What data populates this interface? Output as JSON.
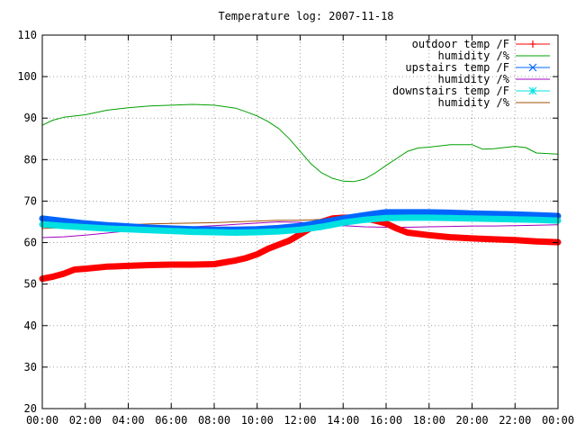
{
  "chart_data": {
    "type": "line",
    "title": "Temperature log: 2007-11-18",
    "xlabel": "",
    "ylabel": "",
    "xlim": [
      "00:00",
      "24:00"
    ],
    "ylim": [
      20,
      110
    ],
    "x_ticks": [
      "00:00",
      "02:00",
      "04:00",
      "06:00",
      "08:00",
      "10:00",
      "12:00",
      "14:00",
      "16:00",
      "18:00",
      "20:00",
      "22:00",
      "00:00"
    ],
    "y_ticks": [
      20,
      30,
      40,
      50,
      60,
      70,
      80,
      90,
      100,
      110
    ],
    "grid": true,
    "legend_position": "top-right",
    "series": [
      {
        "name": "outdoor temp /F",
        "color": "#ff0000",
        "marker": "plus",
        "thick": true,
        "x": [
          "00:00",
          "00:30",
          "01:00",
          "01:30",
          "02:00",
          "03:00",
          "04:00",
          "05:00",
          "06:00",
          "07:00",
          "08:00",
          "09:00",
          "09:30",
          "10:00",
          "10:30",
          "11:00",
          "11:30",
          "12:00",
          "12:30",
          "13:00",
          "13:30",
          "14:00",
          "14:30",
          "15:00",
          "15:30",
          "16:00",
          "16:30",
          "17:00",
          "18:00",
          "19:00",
          "20:00",
          "21:00",
          "22:00",
          "23:00",
          "24:00"
        ],
        "values": [
          51.3,
          51.8,
          52.5,
          53.5,
          53.7,
          54.2,
          54.4,
          54.6,
          54.7,
          54.7,
          54.8,
          55.7,
          56.3,
          57.2,
          58.5,
          59.5,
          60.5,
          62.0,
          63.5,
          65.0,
          65.8,
          66.0,
          66.0,
          65.9,
          65.3,
          64.6,
          63.4,
          62.4,
          61.8,
          61.3,
          61.0,
          60.8,
          60.6,
          60.3,
          60.1
        ]
      },
      {
        "name": "humidity /%",
        "color": "#00a000",
        "marker": "none",
        "thick": false,
        "x": [
          "00:00",
          "00:30",
          "01:00",
          "02:00",
          "03:00",
          "04:00",
          "05:00",
          "06:00",
          "07:00",
          "08:00",
          "09:00",
          "09:30",
          "10:00",
          "10:30",
          "11:00",
          "11:30",
          "12:00",
          "12:30",
          "13:00",
          "13:30",
          "14:00",
          "14:30",
          "15:00",
          "15:30",
          "16:00",
          "16:30",
          "17:00",
          "17:30",
          "18:00",
          "19:00",
          "20:00",
          "20:30",
          "21:00",
          "22:00",
          "22:30",
          "23:00",
          "24:00"
        ],
        "values": [
          88.3,
          89.5,
          90.2,
          90.8,
          91.9,
          92.5,
          92.9,
          93.1,
          93.3,
          93.1,
          92.4,
          91.5,
          90.5,
          89.2,
          87.5,
          85.0,
          82.0,
          79.0,
          76.8,
          75.5,
          74.8,
          74.7,
          75.3,
          76.8,
          78.6,
          80.3,
          82.0,
          82.8,
          83.0,
          83.6,
          83.6,
          82.5,
          82.6,
          83.2,
          82.9,
          81.6,
          81.3
        ]
      },
      {
        "name": "upstairs temp /F",
        "color": "#0066ff",
        "marker": "cross",
        "thick": true,
        "x": [
          "00:00",
          "01:00",
          "02:00",
          "03:00",
          "04:00",
          "05:00",
          "06:00",
          "07:00",
          "08:00",
          "09:00",
          "10:00",
          "11:00",
          "12:00",
          "13:00",
          "14:00",
          "15:00",
          "15:30",
          "16:00",
          "17:00",
          "18:00",
          "19:00",
          "20:00",
          "21:00",
          "22:00",
          "23:00",
          "24:00"
        ],
        "values": [
          65.8,
          65.2,
          64.6,
          64.2,
          63.9,
          63.6,
          63.4,
          63.2,
          63.1,
          63.1,
          63.2,
          63.5,
          64.0,
          64.9,
          65.8,
          66.6,
          67.0,
          67.3,
          67.3,
          67.3,
          67.2,
          67.0,
          66.9,
          66.8,
          66.6,
          66.4
        ]
      },
      {
        "name": "humidity /%",
        "color": "#a000c0",
        "marker": "none",
        "thick": false,
        "x": [
          "00:00",
          "01:00",
          "02:00",
          "03:00",
          "04:00",
          "05:00",
          "06:00",
          "07:00",
          "08:00",
          "09:00",
          "10:00",
          "11:00",
          "12:00",
          "13:00",
          "14:00",
          "15:00",
          "16:00",
          "17:00",
          "18:00",
          "19:00",
          "20:00",
          "21:00",
          "22:00",
          "23:00",
          "24:00"
        ],
        "values": [
          61.2,
          61.4,
          61.8,
          62.3,
          62.8,
          63.2,
          63.5,
          63.8,
          64.1,
          64.4,
          64.7,
          65.0,
          64.9,
          64.5,
          64.1,
          63.8,
          63.7,
          63.7,
          63.8,
          63.9,
          64.0,
          64.0,
          64.1,
          64.2,
          64.3
        ]
      },
      {
        "name": "downstairs temp /F",
        "color": "#00e0e0",
        "marker": "star",
        "thick": true,
        "x": [
          "00:00",
          "01:00",
          "02:00",
          "03:00",
          "04:00",
          "05:00",
          "06:00",
          "07:00",
          "08:00",
          "09:00",
          "10:00",
          "11:00",
          "12:00",
          "13:00",
          "14:00",
          "15:00",
          "16:00",
          "17:00",
          "18:00",
          "19:00",
          "20:00",
          "21:00",
          "22:00",
          "23:00",
          "24:00"
        ],
        "values": [
          64.4,
          64.0,
          63.7,
          63.4,
          63.2,
          63.0,
          62.8,
          62.6,
          62.5,
          62.4,
          62.5,
          62.7,
          63.1,
          63.8,
          64.8,
          65.5,
          65.9,
          66.0,
          66.0,
          65.9,
          65.8,
          65.7,
          65.6,
          65.5,
          65.3
        ]
      },
      {
        "name": "humidity /%",
        "color": "#a05000",
        "marker": "none",
        "thick": false,
        "x": [
          "00:00",
          "01:00",
          "02:00",
          "03:00",
          "04:00",
          "05:00",
          "06:00",
          "07:00",
          "08:00",
          "09:00",
          "10:00",
          "11:00",
          "12:00",
          "13:00",
          "14:00",
          "15:00",
          "16:00",
          "17:00",
          "18:00",
          "19:00",
          "20:00",
          "21:00",
          "22:00",
          "23:00",
          "24:00"
        ],
        "values": [
          63.4,
          63.6,
          63.9,
          64.1,
          64.3,
          64.5,
          64.6,
          64.7,
          64.8,
          65.0,
          65.2,
          65.4,
          65.4,
          65.6,
          65.9,
          66.2,
          66.4,
          66.5,
          66.6,
          66.6,
          66.5,
          66.4,
          66.3,
          66.1,
          66.0
        ]
      }
    ]
  }
}
